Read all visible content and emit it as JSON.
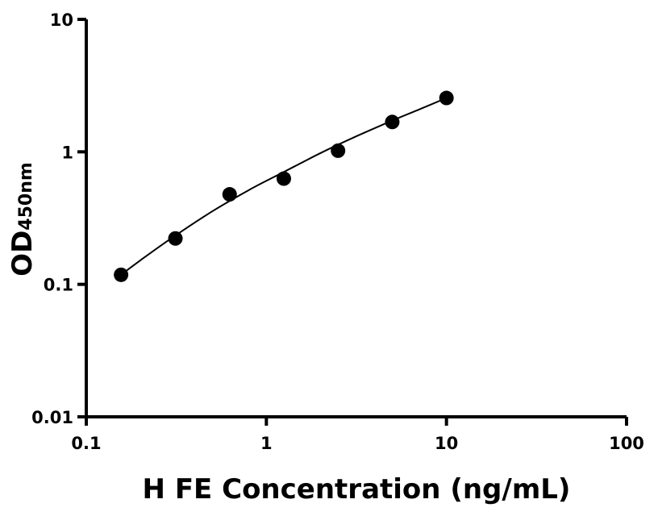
{
  "chart_data": {
    "type": "scatter",
    "title": "",
    "xlabel": "H FE Concentration (ng/mL)",
    "ylabel_main": "OD",
    "ylabel_sub": "450nm",
    "xscale": "log",
    "yscale": "log",
    "xlim": [
      0.1,
      100
    ],
    "ylim": [
      0.01,
      10
    ],
    "x_ticks": [
      0.1,
      1,
      10,
      100
    ],
    "x_tick_labels": [
      "0.1",
      "1",
      "10",
      "100"
    ],
    "y_ticks": [
      0.01,
      0.1,
      1,
      10
    ],
    "y_tick_labels": [
      "0.01",
      "0.1",
      "1",
      "10"
    ],
    "grid": false,
    "legend": "none",
    "series": [
      {
        "x": [
          0.156,
          0.3125,
          0.625,
          1.25,
          2.5,
          5,
          10
        ],
        "y": [
          0.118,
          0.222,
          0.478,
          0.628,
          1.02,
          1.68,
          2.55
        ],
        "marker": "circle",
        "color": "#000000"
      }
    ],
    "fit_curve": {
      "type": "4PL-like smooth fit",
      "x": [
        0.156,
        0.2,
        0.3,
        0.5,
        0.8,
        1.25,
        2,
        3,
        5,
        7,
        10
      ],
      "y": [
        0.118,
        0.152,
        0.225,
        0.355,
        0.515,
        0.705,
        0.98,
        1.27,
        1.72,
        2.08,
        2.55
      ],
      "color": "#000000"
    }
  }
}
